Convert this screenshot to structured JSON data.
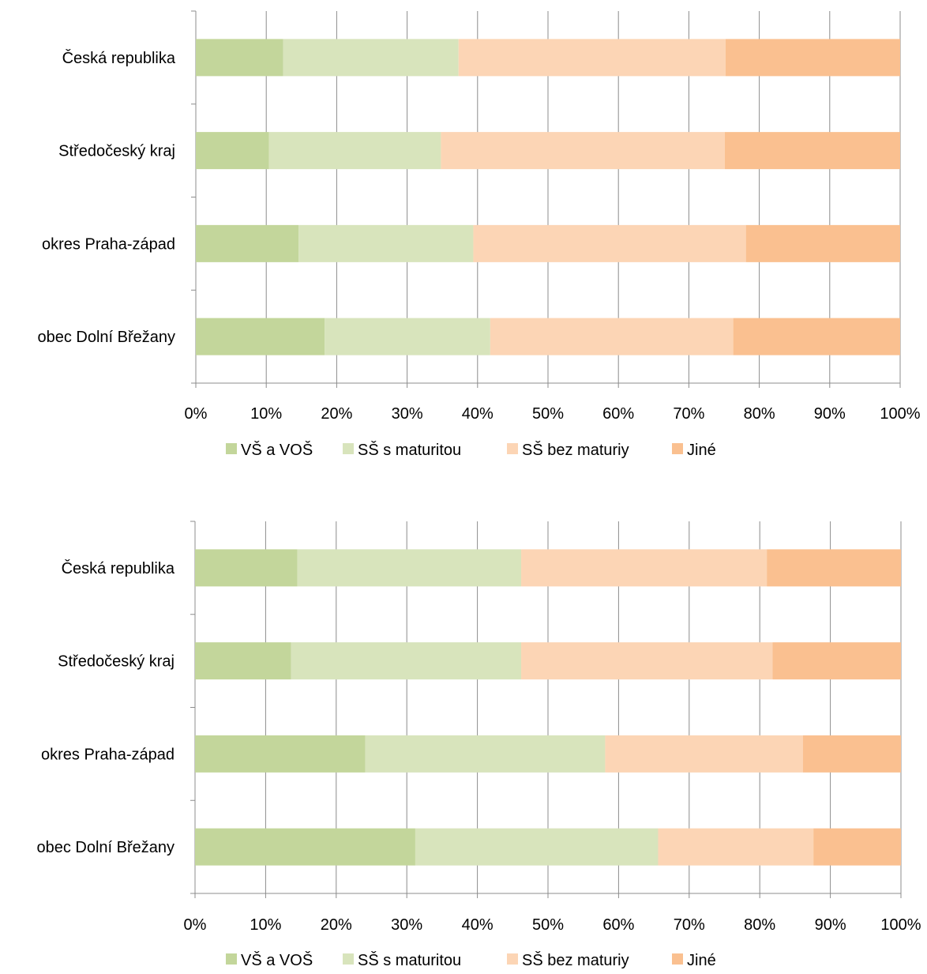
{
  "chart_data": [
    {
      "type": "bar",
      "orientation": "horizontal",
      "stacked": "percent",
      "categories": [
        "Česká republika",
        "Středočeský kraj",
        "okres Praha-západ",
        "obec Dolní  Břežany"
      ],
      "x_ticks": [
        "0%",
        "10%",
        "20%",
        "30%",
        "40%",
        "50%",
        "60%",
        "70%",
        "80%",
        "90%",
        "100%"
      ],
      "xlim": [
        0,
        100
      ],
      "grid": true,
      "legend_position": "bottom",
      "series": [
        {
          "name": "VŠ a VOŠ",
          "color": "#c3d69b",
          "values": [
            12.4,
            10.4,
            14.6,
            18.3
          ]
        },
        {
          "name": "SŠ s maturitou",
          "color": "#d8e4bc",
          "values": [
            24.9,
            24.4,
            24.8,
            23.5
          ]
        },
        {
          "name": "SŠ bez maturiy",
          "color": "#fcd5b5",
          "values": [
            37.9,
            40.3,
            38.7,
            34.5
          ]
        },
        {
          "name": "Jiné",
          "color": "#fac090",
          "values": [
            24.8,
            24.9,
            21.9,
            23.7
          ]
        }
      ]
    },
    {
      "type": "bar",
      "orientation": "horizontal",
      "stacked": "percent",
      "categories": [
        "Česká republika",
        "Středočeský kraj",
        "okres Praha-západ",
        "obec Dolní  Břežany"
      ],
      "x_ticks": [
        "0%",
        "10%",
        "20%",
        "30%",
        "40%",
        "50%",
        "60%",
        "70%",
        "80%",
        "90%",
        "100%"
      ],
      "xlim": [
        0,
        100
      ],
      "grid": true,
      "legend_position": "bottom",
      "series": [
        {
          "name": "VŠ a VOŠ",
          "color": "#c3d69b",
          "values": [
            14.5,
            13.6,
            24.1,
            31.2
          ]
        },
        {
          "name": "SŠ s maturitou",
          "color": "#d8e4bc",
          "values": [
            31.7,
            32.6,
            34.0,
            34.4
          ]
        },
        {
          "name": "SŠ bez maturiy",
          "color": "#fcd5b5",
          "values": [
            34.8,
            35.6,
            28.0,
            22.0
          ]
        },
        {
          "name": "Jiné",
          "color": "#fac090",
          "values": [
            19.0,
            18.2,
            13.9,
            12.4
          ]
        }
      ]
    }
  ]
}
